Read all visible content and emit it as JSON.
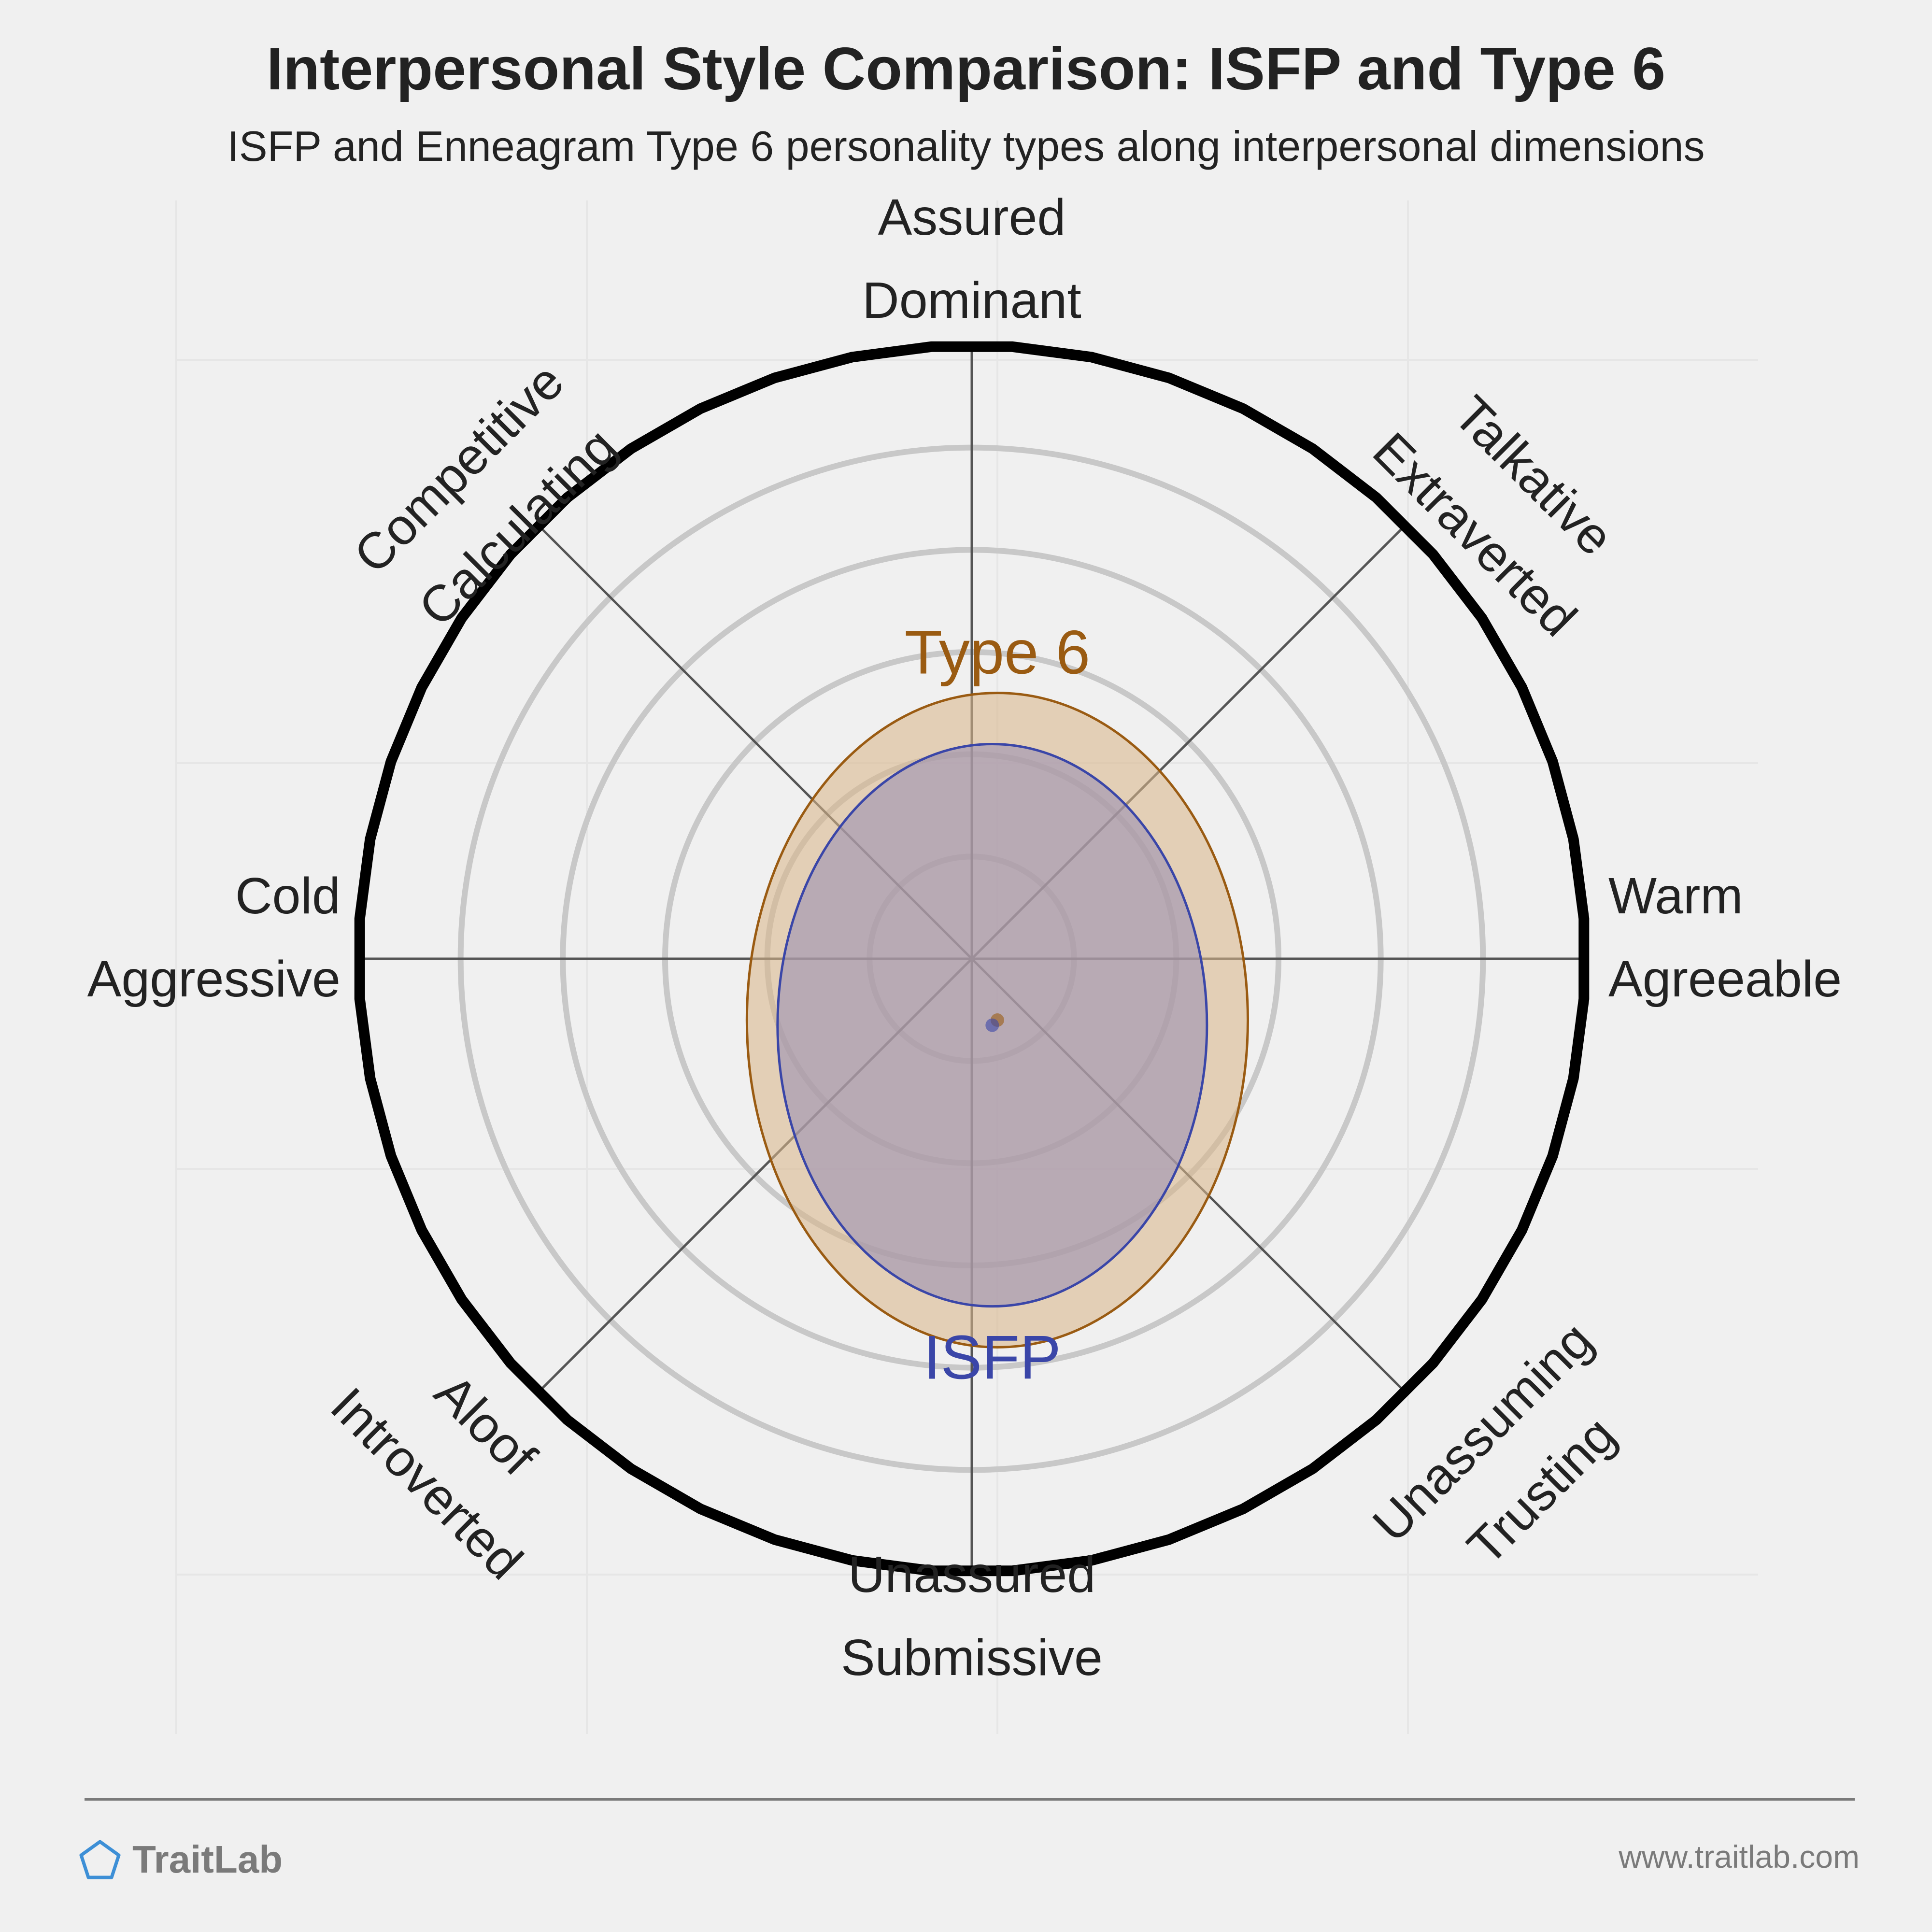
{
  "header": {
    "title": "Interpersonal Style Comparison: ISFP and Type 6",
    "subtitle": "ISFP and Enneagram Type 6 personality types along interpersonal dimensions"
  },
  "chart_data": {
    "type": "scatter",
    "title": "Interpersonal Style Comparison: ISFP and Type 6",
    "subtitle": "ISFP and Enneagram Type 6 personality types along interpersonal dimensions",
    "coordinate_system": "polar (interpersonal circumplex)",
    "x_axis": {
      "min": -6,
      "max": 6,
      "negative_end": [
        "Cold",
        "Aggressive"
      ],
      "positive_end": [
        "Warm",
        "Agreeable"
      ]
    },
    "y_axis": {
      "min": -6,
      "max": 6,
      "negative_end": [
        "Unassured",
        "Submissive"
      ],
      "positive_end": [
        "Assured",
        "Dominant"
      ]
    },
    "ring_count": 6,
    "grid": true,
    "octant_labels": [
      {
        "id": "top",
        "lines": [
          "Assured",
          "Dominant"
        ]
      },
      {
        "id": "top-right",
        "lines": [
          "Talkative",
          "Extraverted"
        ]
      },
      {
        "id": "right",
        "lines": [
          "Warm",
          "Agreeable"
        ]
      },
      {
        "id": "bottom-right",
        "lines": [
          "Unassuming",
          "Trusting"
        ]
      },
      {
        "id": "bottom",
        "lines": [
          "Unassured",
          "Submissive"
        ]
      },
      {
        "id": "bottom-left",
        "lines": [
          "Aloof",
          "Introverted"
        ]
      },
      {
        "id": "left",
        "lines": [
          "Cold",
          "Aggressive"
        ]
      },
      {
        "id": "top-left",
        "lines": [
          "Competitive",
          "Calculating"
        ]
      }
    ],
    "series": [
      {
        "name": "Type 6",
        "x": 0.25,
        "y": -0.6,
        "spread_x": 2.45,
        "spread_y": 3.2,
        "color": "#9a5b12",
        "fill": "#d9b68c"
      },
      {
        "name": "ISFP",
        "x": 0.2,
        "y": -0.65,
        "spread_x": 2.1,
        "spread_y": 2.75,
        "color": "#3a46a8",
        "fill": "#9a8fb4"
      }
    ]
  },
  "footer": {
    "brand": "TraitLab",
    "site": "www.traitlab.com"
  },
  "colors": {
    "background": "#f0f0f0",
    "text": "#222222",
    "outer_ring": "#000000",
    "inner_rings": "#c8c8c8",
    "axes": "#555555",
    "footer": "#7a7a7a",
    "brand_icon": "#3d8fd6"
  }
}
